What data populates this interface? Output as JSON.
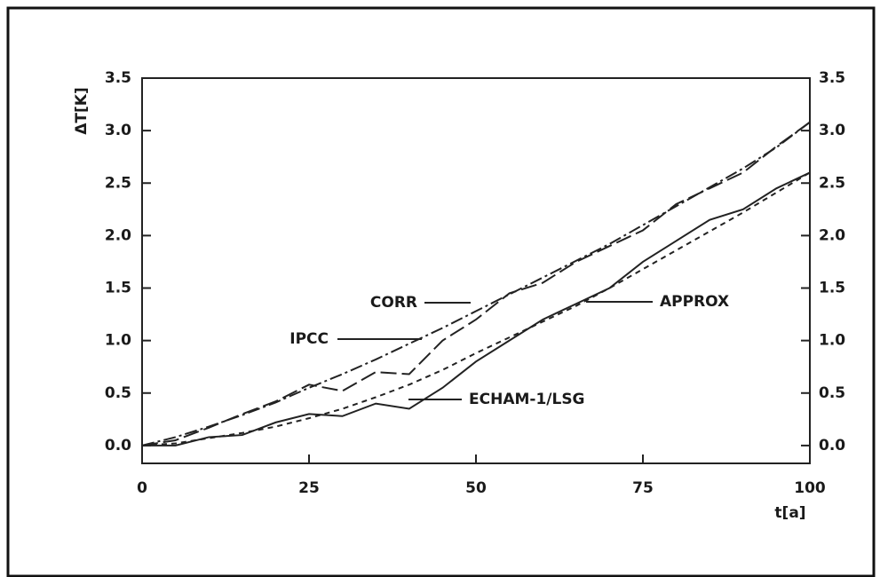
{
  "chart_data": {
    "type": "line",
    "x": [
      0,
      5,
      10,
      15,
      20,
      25,
      30,
      35,
      40,
      45,
      50,
      55,
      60,
      65,
      70,
      75,
      80,
      85,
      90,
      95,
      100
    ],
    "series": [
      {
        "name": "IPCC",
        "color": "#222222",
        "values": [
          0,
          0.08,
          0.18,
          0.29,
          0.41,
          0.55,
          0.68,
          0.82,
          0.97,
          1.12,
          1.28,
          1.44,
          1.6,
          1.76,
          1.92,
          2.1,
          2.28,
          2.46,
          2.64,
          2.84,
          3.08
        ]
      },
      {
        "name": "CORR",
        "color": "#222222",
        "values": [
          0,
          0.05,
          0.17,
          0.3,
          0.42,
          0.58,
          0.52,
          0.7,
          0.68,
          1.0,
          1.2,
          1.45,
          1.55,
          1.75,
          1.9,
          2.05,
          2.3,
          2.45,
          2.6,
          2.85,
          3.08
        ]
      },
      {
        "name": "ECHAM-1/LSG",
        "color": "#222222",
        "values": [
          0,
          0.0,
          0.08,
          0.1,
          0.22,
          0.3,
          0.28,
          0.4,
          0.35,
          0.55,
          0.8,
          1.0,
          1.2,
          1.35,
          1.5,
          1.75,
          1.95,
          2.15,
          2.25,
          2.45,
          2.6
        ]
      },
      {
        "name": "APPROX",
        "color": "#222222",
        "values": [
          0,
          0.02,
          0.07,
          0.12,
          0.18,
          0.26,
          0.35,
          0.46,
          0.58,
          0.72,
          0.88,
          1.03,
          1.18,
          1.33,
          1.5,
          1.68,
          1.86,
          2.04,
          2.22,
          2.41,
          2.6
        ]
      }
    ],
    "y_label": "ΔT[K]",
    "x_label": "t[a]",
    "xlim": [
      0,
      100
    ],
    "xticks": [
      0,
      25,
      50,
      75,
      100
    ],
    "ylim": [
      -0.17,
      3.5
    ],
    "yticks": [
      {
        "value": 0,
        "label": "0.0"
      },
      0.5,
      {
        "value": 1,
        "label": "1.0"
      },
      1.5,
      {
        "value": 2,
        "label": "2.0"
      },
      2.5,
      {
        "value": 3,
        "label": "3.0"
      },
      3.5
    ],
    "y2lim": [
      -0.17,
      3.5
    ],
    "y2ticks": [
      {
        "value": 0,
        "label": "0.0"
      },
      0.5,
      {
        "value": 1,
        "label": "1.0"
      },
      1.5,
      {
        "value": 2,
        "label": "2.0"
      },
      2.5,
      {
        "value": 3,
        "label": "3.0"
      },
      3.5
    ]
  }
}
